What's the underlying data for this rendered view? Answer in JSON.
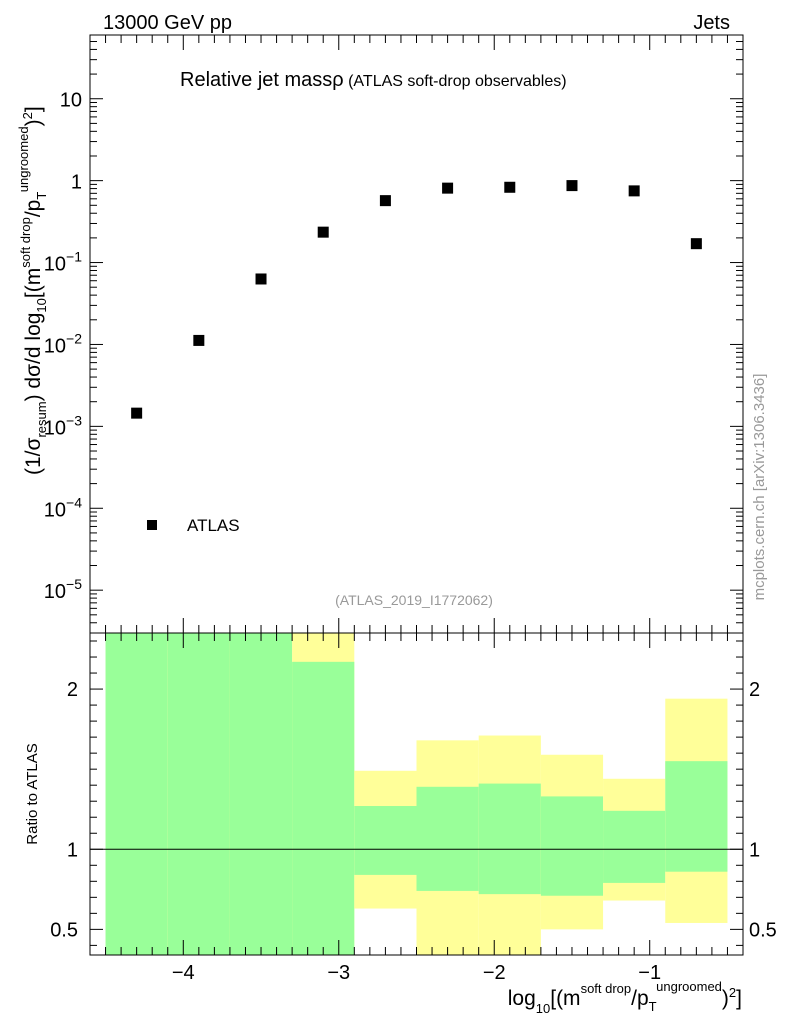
{
  "header": {
    "left": "13000 GeV pp",
    "right": "Jets"
  },
  "side_label": "mcplots.cern.ch [arXiv:1306.3436]",
  "chart_data": [
    {
      "type": "scatter",
      "title_main": "Relative jet massρ",
      "title_sub": " (ATLAS soft-drop observables)",
      "analysis_label": "(ATLAS_2019_I1772062)",
      "ylabel": "(1/σresum) dσ/d log10[(m soft drop/pT ungroomed)2]",
      "ylabel_parts": {
        "a": "(1/σ",
        "b": "resum",
        "c": ") dσ/d log",
        "d": "10",
        "e": "[(m",
        "f": "soft drop",
        "g": "/p",
        "h": "T",
        "i": "ungroomed",
        "j": ")",
        "k": "2",
        "l": "]"
      },
      "yscale": "log",
      "ylim": [
        3e-06,
        60
      ],
      "xlim": [
        -4.6,
        -0.4
      ],
      "y_ticks": [
        {
          "value": 10,
          "base": "10",
          "exp": ""
        },
        {
          "value": 1,
          "base": "1",
          "exp": ""
        },
        {
          "value": 0.1,
          "base": "10",
          "exp": "−1"
        },
        {
          "value": 0.01,
          "base": "10",
          "exp": "−2"
        },
        {
          "value": 0.001,
          "base": "10",
          "exp": "−3"
        },
        {
          "value": 0.0001,
          "base": "10",
          "exp": "−4"
        },
        {
          "value": 1e-05,
          "base": "10",
          "exp": "−5"
        }
      ],
      "legend": {
        "label": "ATLAS",
        "position": "bottom-left"
      },
      "series": [
        {
          "name": "ATLAS",
          "x": [
            -4.3,
            -3.9,
            -3.5,
            -3.1,
            -2.7,
            -2.3,
            -1.9,
            -1.5,
            -1.1,
            -0.7
          ],
          "y": [
            0.00145,
            0.0112,
            0.063,
            0.235,
            0.57,
            0.81,
            0.83,
            0.87,
            0.75,
            0.17
          ]
        }
      ]
    },
    {
      "type": "area",
      "ylabel": "Ratio to ATLAS",
      "xlabel": "log10[(m soft drop/pT ungroomed)2]",
      "xlabel_parts": {
        "a": "log",
        "b": "10",
        "c": "[(m",
        "d": "soft drop",
        "e": "/p",
        "f": "T",
        "g": "ungroomed",
        "h": ")",
        "i": "2",
        "j": "]"
      },
      "ylim": [
        0.34,
        2.35
      ],
      "xlim": [
        -4.6,
        -0.4
      ],
      "reference_line": 1,
      "y_ticks": [
        {
          "value": 2,
          "label": "2"
        },
        {
          "value": 1,
          "label": "1"
        },
        {
          "value": 0.5,
          "label": "0.5"
        }
      ],
      "x_ticks": [
        {
          "value": -4,
          "label": "−4"
        },
        {
          "value": -3,
          "label": "−3"
        },
        {
          "value": -2,
          "label": "−2"
        },
        {
          "value": -1,
          "label": "−1"
        }
      ],
      "bin_edges": [
        -4.5,
        -4.1,
        -3.7,
        -3.3,
        -2.9,
        -2.5,
        -2.1,
        -1.7,
        -1.3,
        -0.9,
        -0.5
      ],
      "band_stat_low": [
        0.34,
        0.34,
        0.34,
        0.34,
        0.84,
        0.74,
        0.72,
        0.71,
        0.79,
        0.86
      ],
      "band_stat_high": [
        2.35,
        2.35,
        2.35,
        2.17,
        1.27,
        1.39,
        1.41,
        1.33,
        1.24,
        1.55
      ],
      "band_total_low": [
        0.34,
        0.34,
        0.34,
        0.34,
        0.63,
        0.34,
        0.34,
        0.5,
        0.68,
        0.54
      ],
      "band_total_high": [
        2.35,
        2.35,
        2.35,
        2.35,
        1.49,
        1.68,
        1.71,
        1.59,
        1.44,
        1.94
      ],
      "colors": {
        "stat": "#99ff99",
        "total": "#ffff99"
      }
    }
  ]
}
